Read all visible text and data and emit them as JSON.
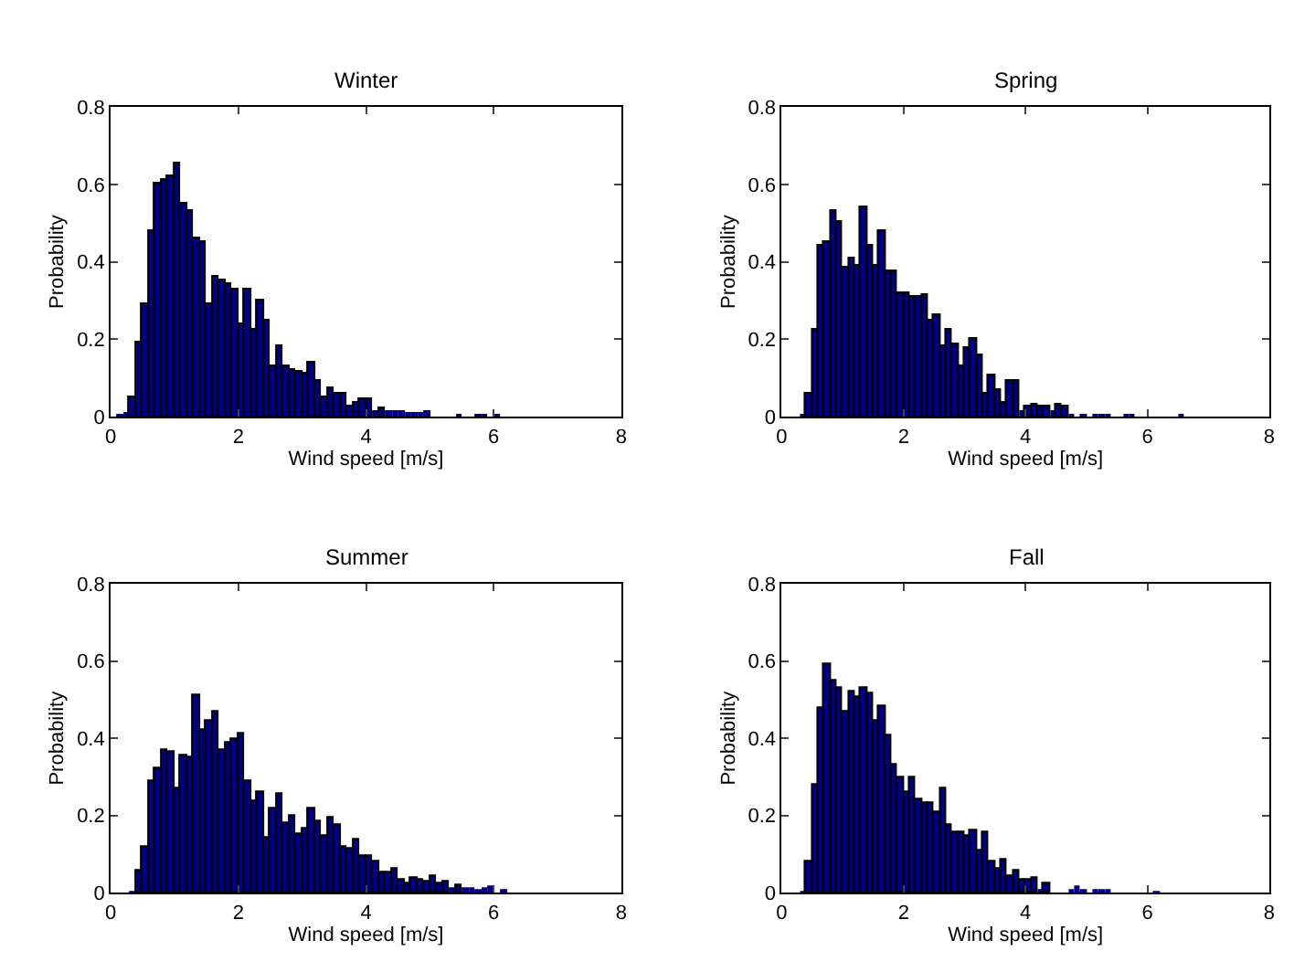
{
  "chart_data": [
    {
      "type": "histogram",
      "title": "Winter",
      "xlabel": "Wind speed [m/s]",
      "ylabel": "Probability",
      "color": "#000080",
      "xlim": [
        0,
        8
      ],
      "ylim": [
        0,
        0.8
      ],
      "xticks": [
        0,
        2,
        4,
        6,
        8
      ],
      "yticks": [
        0,
        0.2,
        0.4,
        0.6,
        0.8
      ],
      "bins": [
        0.1,
        0.2,
        0.3,
        0.4,
        0.5,
        0.6,
        0.7,
        0.8,
        0.9,
        1.0,
        1.1,
        1.2,
        1.3,
        1.4,
        1.5,
        1.6,
        1.7,
        1.8,
        1.9,
        2.0,
        2.1,
        2.2,
        2.3,
        2.4,
        2.5,
        2.6,
        2.7,
        2.8,
        2.9,
        3.0,
        3.1,
        3.2,
        3.3,
        3.4,
        3.5,
        3.6,
        3.7,
        3.8,
        3.9,
        4.0,
        4.1,
        4.2,
        4.3,
        4.4,
        4.5,
        4.6,
        4.7,
        4.8,
        4.9,
        5.0,
        5.1,
        5.2,
        5.3,
        5.4,
        5.5,
        5.6,
        5.7,
        5.8,
        5.9,
        6.0,
        6.1
      ],
      "values": [
        0.007,
        0.014,
        0.05,
        0.19,
        0.29,
        0.48,
        0.6,
        0.61,
        0.62,
        0.655,
        0.55,
        0.53,
        0.46,
        0.45,
        0.29,
        0.36,
        0.35,
        0.34,
        0.33,
        0.24,
        0.33,
        0.225,
        0.3,
        0.25,
        0.13,
        0.18,
        0.13,
        0.12,
        0.115,
        0.11,
        0.14,
        0.09,
        0.05,
        0.075,
        0.06,
        0.06,
        0.025,
        0.035,
        0.045,
        0.045,
        0.016,
        0.02,
        0.018,
        0.015,
        0.018,
        0.014,
        0.014,
        0.014,
        0.018,
        0,
        0,
        0,
        0,
        0.006,
        0,
        0,
        0.003,
        0.003,
        0,
        0.003
      ]
    },
    {
      "type": "histogram",
      "title": "Spring",
      "xlabel": "Wind speed [m/s]",
      "ylabel": "Probability",
      "color": "#000080",
      "xlim": [
        0,
        8
      ],
      "ylim": [
        0,
        0.8
      ],
      "xticks": [
        0,
        2,
        4,
        6,
        8
      ],
      "yticks": [
        0,
        0.2,
        0.4,
        0.6,
        0.8
      ],
      "bins": [
        0.3,
        0.4,
        0.5,
        0.6,
        0.7,
        0.8,
        0.9,
        1.0,
        1.1,
        1.2,
        1.3,
        1.4,
        1.5,
        1.6,
        1.7,
        1.8,
        1.9,
        2.0,
        2.1,
        2.2,
        2.3,
        2.4,
        2.5,
        2.6,
        2.7,
        2.8,
        2.9,
        3.0,
        3.1,
        3.2,
        3.3,
        3.4,
        3.5,
        3.6,
        3.7,
        3.8,
        3.9,
        4.0,
        4.1,
        4.2,
        4.3,
        4.4,
        4.5,
        4.6,
        4.7,
        4.8,
        4.9,
        5.0,
        5.1,
        5.2,
        5.3,
        5.4,
        5.5,
        5.6,
        5.7,
        5.8,
        5.9,
        6.0,
        6.1,
        6.2,
        6.3,
        6.4,
        6.5,
        6.6
      ],
      "values": [
        0.005,
        0.06,
        0.225,
        0.44,
        0.45,
        0.53,
        0.505,
        0.385,
        0.41,
        0.39,
        0.54,
        0.44,
        0.39,
        0.48,
        0.375,
        0.375,
        0.32,
        0.32,
        0.31,
        0.31,
        0.315,
        0.25,
        0.26,
        0.18,
        0.225,
        0.185,
        0.13,
        0.175,
        0.2,
        0.16,
        0.06,
        0.105,
        0.07,
        0.035,
        0.09,
        0.09,
        0.018,
        0.024,
        0.03,
        0.024,
        0.024,
        0.018,
        0.03,
        0.024,
        0.007,
        0,
        0.004,
        0,
        0.008,
        0.008,
        0.008,
        0,
        0,
        0.008,
        0.008,
        0,
        0,
        0,
        0,
        0,
        0,
        0,
        0.004
      ]
    },
    {
      "type": "histogram",
      "title": "Summer",
      "xlabel": "Wind speed [m/s]",
      "ylabel": "Probability",
      "color": "#000080",
      "xlim": [
        0,
        8
      ],
      "ylim": [
        0,
        0.8
      ],
      "xticks": [
        0,
        2,
        4,
        6,
        8
      ],
      "yticks": [
        0,
        0.2,
        0.4,
        0.6,
        0.8
      ],
      "bins": [
        0.3,
        0.4,
        0.5,
        0.6,
        0.7,
        0.8,
        0.9,
        1.0,
        1.1,
        1.2,
        1.3,
        1.4,
        1.5,
        1.6,
        1.7,
        1.8,
        1.9,
        2.0,
        2.1,
        2.2,
        2.3,
        2.4,
        2.5,
        2.6,
        2.7,
        2.8,
        2.9,
        3.0,
        3.1,
        3.2,
        3.3,
        3.4,
        3.5,
        3.6,
        3.7,
        3.8,
        3.9,
        4.0,
        4.1,
        4.2,
        4.3,
        4.4,
        4.5,
        4.6,
        4.7,
        4.8,
        4.9,
        5.0,
        5.1,
        5.2,
        5.3,
        5.4,
        5.5,
        5.6,
        5.7,
        5.8,
        5.9,
        6.0,
        6.1,
        6.2
      ],
      "values": [
        0.004,
        0.056,
        0.12,
        0.29,
        0.32,
        0.37,
        0.365,
        0.27,
        0.355,
        0.35,
        0.51,
        0.42,
        0.445,
        0.47,
        0.37,
        0.39,
        0.4,
        0.41,
        0.29,
        0.235,
        0.26,
        0.14,
        0.22,
        0.255,
        0.18,
        0.2,
        0.15,
        0.165,
        0.22,
        0.185,
        0.145,
        0.195,
        0.175,
        0.12,
        0.115,
        0.135,
        0.095,
        0.095,
        0.08,
        0.053,
        0.053,
        0.06,
        0.035,
        0.026,
        0.04,
        0.035,
        0.028,
        0.044,
        0.026,
        0.03,
        0.012,
        0.02,
        0.012,
        0.012,
        0.01,
        0.015,
        0.017,
        0,
        0.005
      ]
    },
    {
      "type": "histogram",
      "title": "Fall",
      "xlabel": "Wind speed [m/s]",
      "ylabel": "Probability",
      "color": "#000080",
      "xlim": [
        0,
        8
      ],
      "ylim": [
        0,
        0.8
      ],
      "xticks": [
        0,
        2,
        4,
        6,
        8
      ],
      "yticks": [
        0,
        0.2,
        0.4,
        0.6,
        0.8
      ],
      "bins": [
        0.3,
        0.4,
        0.5,
        0.6,
        0.7,
        0.8,
        0.9,
        1.0,
        1.1,
        1.2,
        1.3,
        1.4,
        1.5,
        1.6,
        1.7,
        1.8,
        1.9,
        2.0,
        2.1,
        2.2,
        2.3,
        2.4,
        2.5,
        2.6,
        2.7,
        2.8,
        2.9,
        3.0,
        3.1,
        3.2,
        3.3,
        3.4,
        3.5,
        3.6,
        3.7,
        3.8,
        3.9,
        4.0,
        4.1,
        4.2,
        4.3,
        4.4,
        4.5,
        4.6,
        4.7,
        4.8,
        4.9,
        5.0,
        5.1,
        5.2,
        5.3,
        5.4,
        5.5,
        5.6,
        5.7,
        5.8,
        5.9,
        6.0,
        6.1,
        6.2
      ],
      "values": [
        0.004,
        0.08,
        0.28,
        0.48,
        0.59,
        0.55,
        0.53,
        0.47,
        0.52,
        0.505,
        0.53,
        0.515,
        0.445,
        0.485,
        0.405,
        0.33,
        0.3,
        0.26,
        0.3,
        0.24,
        0.23,
        0.23,
        0.21,
        0.27,
        0.175,
        0.155,
        0.155,
        0.145,
        0.16,
        0.11,
        0.155,
        0.08,
        0.063,
        0.085,
        0.044,
        0.058,
        0.032,
        0.035,
        0.04,
        0.011,
        0.026,
        0,
        0,
        0,
        0.008,
        0.017,
        0.007,
        0,
        0.008,
        0.008,
        0.008,
        0,
        0,
        0,
        0,
        0,
        0,
        0,
        0.004
      ]
    }
  ]
}
